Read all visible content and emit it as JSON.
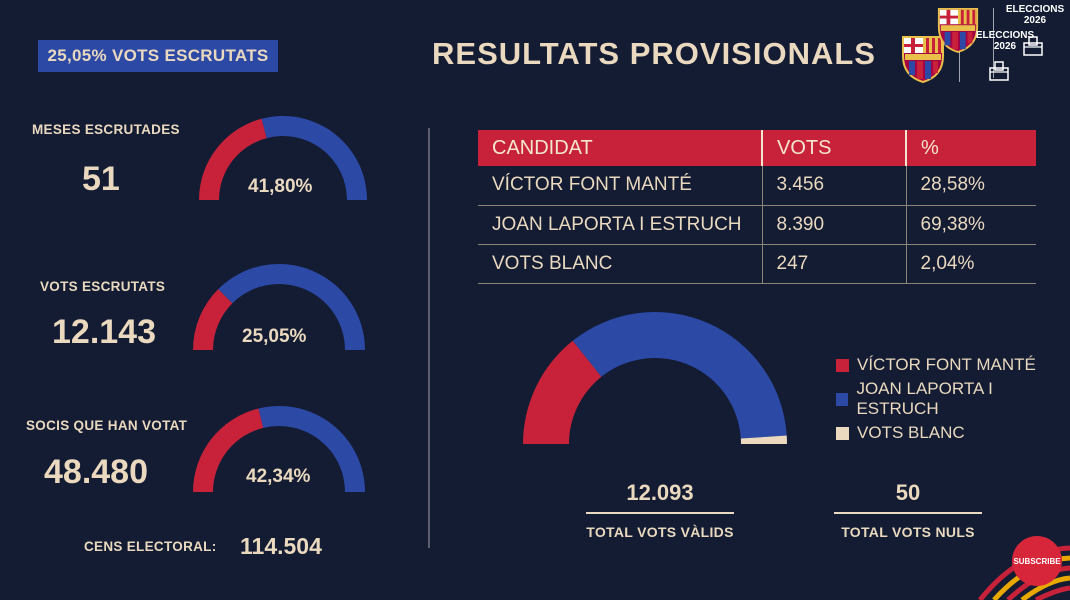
{
  "header": {
    "badge": "25,05% VOTS ESCRUTATS",
    "title": "RESULTATS PROVISIONALS",
    "logo_text_1": "ELECCIONS",
    "logo_text_2": "2026"
  },
  "left_stats": [
    {
      "label": "MESES ESCRUTADES",
      "value": "51",
      "gauge_pct": "41,80%",
      "fraction": 0.418
    },
    {
      "label": "VOTS ESCRUTATS",
      "value": "12.143",
      "gauge_pct": "25,05%",
      "fraction": 0.2505
    },
    {
      "label": "SOCIS QUE HAN VOTAT",
      "value": "48.480",
      "gauge_pct": "42,34%",
      "fraction": 0.4234
    }
  ],
  "census": {
    "label": "CENS ELECTORAL:",
    "value": "114.504"
  },
  "table": {
    "headers": [
      "CANDIDAT",
      "VOTS",
      "%"
    ],
    "rows": [
      {
        "name": "VÍCTOR FONT MANTÉ",
        "votes": "3.456",
        "pct": "28,58%"
      },
      {
        "name": "JOAN LAPORTA I ESTRUCH",
        "votes": "8.390",
        "pct": "69,38%"
      },
      {
        "name": "VOTS BLANC",
        "votes": "247",
        "pct": "2,04%"
      }
    ]
  },
  "result_chart": {
    "type": "semi-donut",
    "slices": [
      {
        "name": "VÍCTOR FONT MANTÉ",
        "share": 28.58,
        "color": "#c8223a"
      },
      {
        "name": "JOAN LAPORTA I ESTRUCH",
        "share": 69.38,
        "color": "#2c49a6"
      },
      {
        "name": "VOTS BLANC",
        "share": 2.04,
        "color": "#ead9bf"
      }
    ]
  },
  "totals": {
    "valid_value": "12.093",
    "valid_label": "TOTAL VOTS VÀLIDS",
    "null_value": "50",
    "null_label": "TOTAL VOTS NULS"
  },
  "subscribe": "SUBSCRIBE",
  "colors": {
    "background": "#131c33",
    "red": "#c8223a",
    "blue": "#2c49a6",
    "cream": "#ead9bf"
  }
}
